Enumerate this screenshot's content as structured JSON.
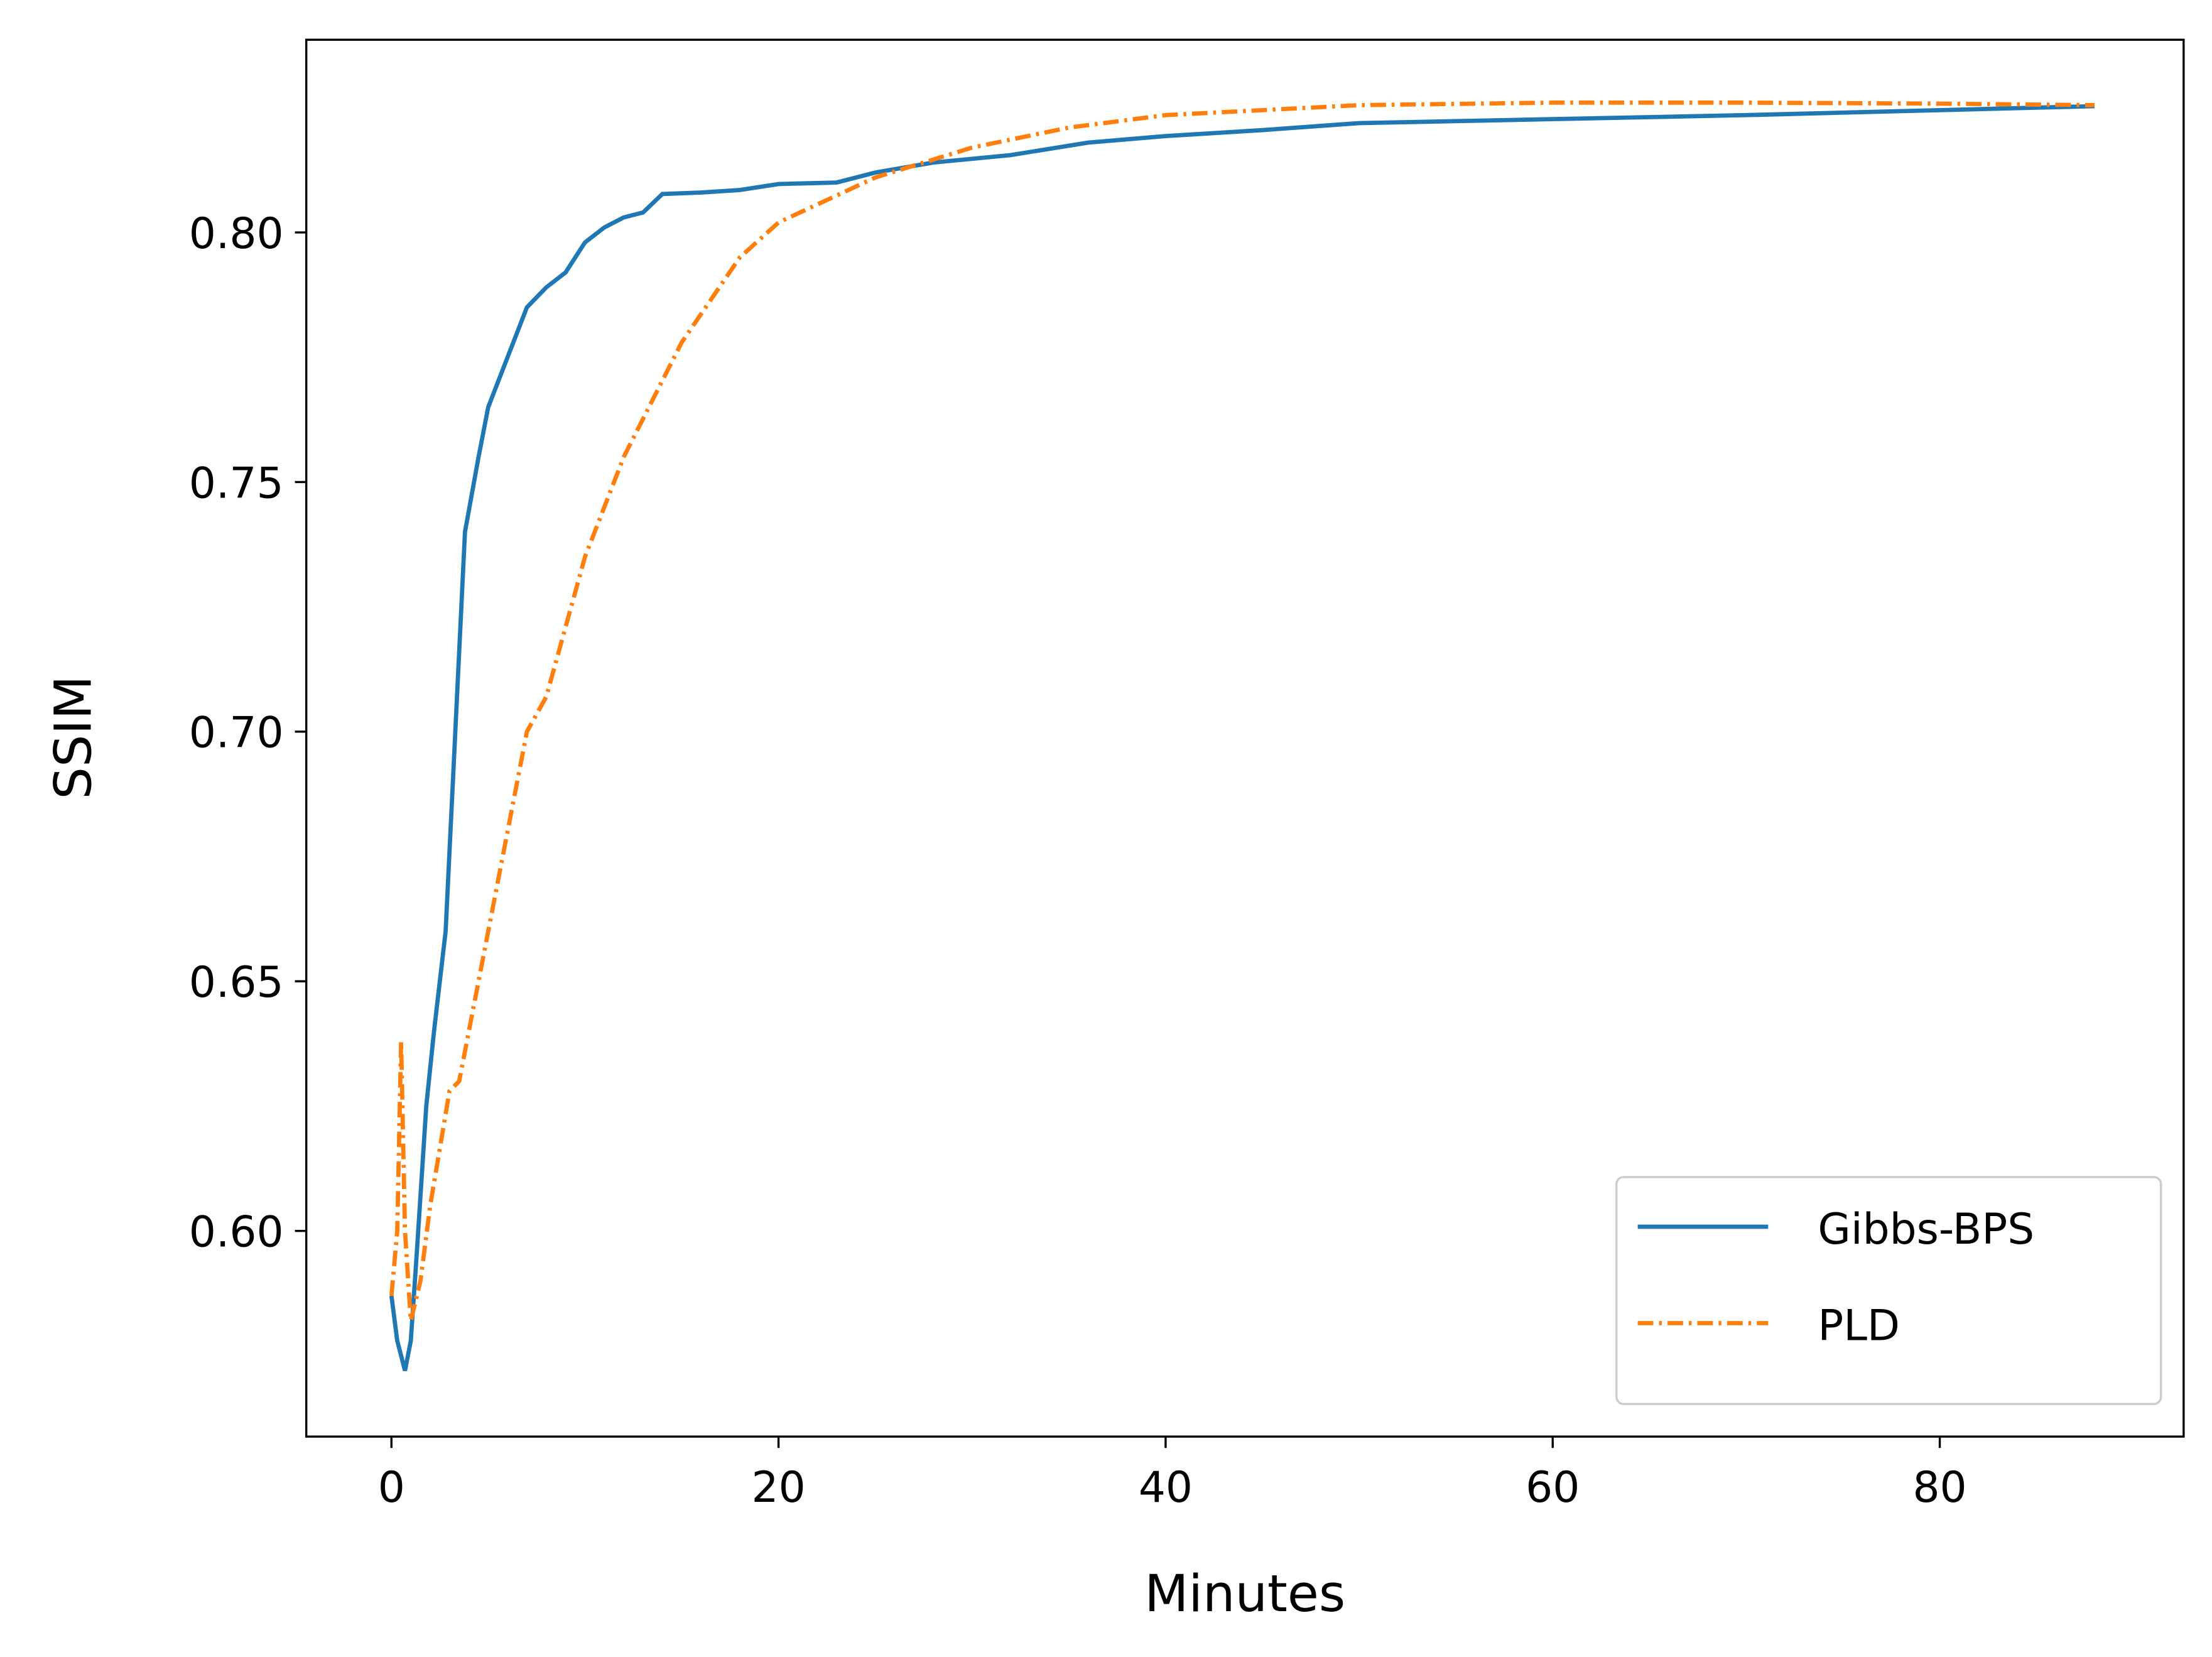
{
  "chart_data": {
    "type": "line",
    "x_label": "Minutes",
    "y_label": "SSIM",
    "xlim": [
      -4.4,
      92.6
    ],
    "ylim": [
      0.5588,
      0.8386
    ],
    "xticks": [
      0,
      20,
      40,
      60,
      80
    ],
    "yticks": [
      {
        "value": 0.6,
        "label": "0.60"
      },
      {
        "value": 0.65,
        "label": "0.65"
      },
      {
        "value": 0.7,
        "label": "0.70"
      },
      {
        "value": 0.75,
        "label": "0.75"
      },
      {
        "value": 0.8,
        "label": "0.80"
      }
    ],
    "legend": "lower right",
    "series": [
      {
        "name": "Gibbs-BPS",
        "color": "#1f77b4",
        "style": "solid",
        "x": [
          0,
          0.3,
          0.7,
          1.0,
          1.3,
          1.8,
          2.2,
          2.8,
          3.3,
          3.8,
          4.5,
          5,
          6,
          7,
          8,
          9,
          10,
          11,
          12,
          13,
          14,
          16,
          18,
          20,
          23,
          25,
          28,
          32,
          36,
          40,
          45,
          50,
          60,
          70,
          80,
          88
        ],
        "values": [
          0.587,
          0.578,
          0.572,
          0.578,
          0.595,
          0.625,
          0.64,
          0.66,
          0.7,
          0.74,
          0.755,
          0.765,
          0.775,
          0.785,
          0.789,
          0.792,
          0.798,
          0.801,
          0.803,
          0.804,
          0.8077,
          0.808,
          0.8085,
          0.8097,
          0.81,
          0.812,
          0.814,
          0.8155,
          0.818,
          0.8193,
          0.8205,
          0.8219,
          0.8227,
          0.8235,
          0.8245,
          0.8253
        ]
      },
      {
        "name": "PLD",
        "color": "#ff7f0e",
        "style": "dashdot",
        "x": [
          0,
          0.3,
          0.5,
          0.7,
          1,
          1.5,
          2,
          3,
          3.5,
          5,
          6,
          7,
          8,
          10,
          12,
          15,
          18,
          20,
          25,
          30,
          35,
          40,
          50,
          60,
          70,
          80,
          88
        ],
        "values": [
          0.587,
          0.6,
          0.638,
          0.6,
          0.582,
          0.59,
          0.605,
          0.628,
          0.63,
          0.66,
          0.68,
          0.7,
          0.707,
          0.735,
          0.755,
          0.778,
          0.795,
          0.802,
          0.811,
          0.817,
          0.821,
          0.8235,
          0.8255,
          0.826,
          0.826,
          0.8258,
          0.8255
        ]
      }
    ]
  }
}
